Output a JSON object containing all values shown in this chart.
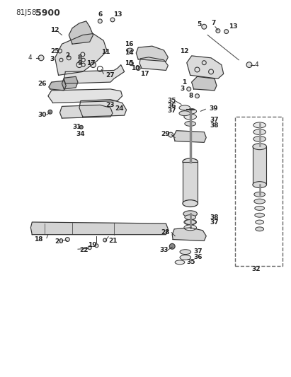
{
  "bg_color": "#ffffff",
  "line_color": "#333333",
  "figsize": [
    4.11,
    5.33
  ],
  "dpi": 100,
  "header_text1": "81J58",
  "header_text2": "5900"
}
